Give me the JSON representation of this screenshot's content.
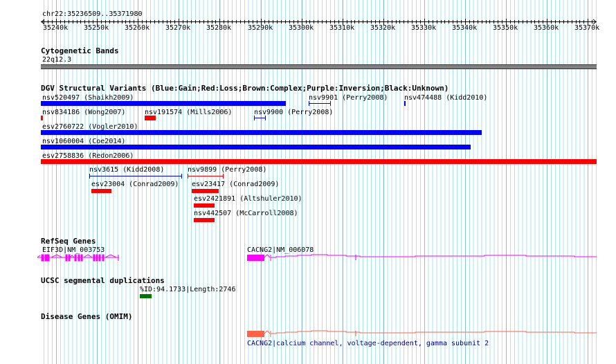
{
  "ruler": {
    "location": "chr22:35236509..35371980",
    "ticks": [
      "35240k",
      "35250k",
      "35260k",
      "35270k",
      "35280k",
      "35290k",
      "35300k",
      "35310k",
      "35320k",
      "35330k",
      "35340k",
      "35350k",
      "35360k",
      "35370k"
    ]
  },
  "tracks": {
    "cyto": {
      "title": "Cytogenetic Bands",
      "band": "22q12.3"
    },
    "dgv": {
      "title": "DGV Structural Variants (Blue:Gain;Red:Loss;Brown:Complex;Purple:Inversion;Black:Unknown)",
      "features": [
        {
          "label": "nsv520497 (Shaikh2009)",
          "type": "Gain"
        },
        {
          "label": "nsv9901 (Perry2008)",
          "type": "Gain"
        },
        {
          "label": "nsv474488 (Kidd2010)",
          "type": "Gain"
        },
        {
          "label": "nsv834186 (Wong2007)",
          "type": "Loss"
        },
        {
          "label": "nsv191574 (Mills2006)",
          "type": "Loss"
        },
        {
          "label": "nsv9900 (Perry2008)",
          "type": "Gain"
        },
        {
          "label": "esv2760722 (Vogler2010)",
          "type": "Gain"
        },
        {
          "label": "nsv1060004 (Coe2014)",
          "type": "Gain"
        },
        {
          "label": "esv2758836 (Redon2006)",
          "type": "Loss"
        },
        {
          "label": "nsv3615 (Kidd2008)",
          "type": "Gain"
        },
        {
          "label": "nsv9899 (Perry2008)",
          "type": "Loss"
        },
        {
          "label": "esv23004 (Conrad2009)",
          "type": "Loss"
        },
        {
          "label": "esv23417 (Conrad2009)",
          "type": "Loss"
        },
        {
          "label": "esv2421891 (Altshuler2010)",
          "type": "Loss"
        },
        {
          "label": "nsv442507 (McCarroll2008)",
          "type": "Loss"
        }
      ]
    },
    "refseq": {
      "title": "RefSeq Genes",
      "genes": [
        "EIF3D|NM_003753",
        "CACNG2|NM_006078"
      ]
    },
    "segdup": {
      "title": "UCSC segmental duplications",
      "feature": "%ID:94.1733|Length:2746"
    },
    "omim": {
      "title": "Disease Genes (OMIM)",
      "feature": "CACNG2|calcium channel, voltage-dependent, gamma subunit 2"
    }
  },
  "colors": {
    "gain": "#0000ff",
    "loss": "#ff0000",
    "gene": "#ff00ff",
    "segdup": "#007700",
    "omim": "#ff6347",
    "omim_label": "#000080",
    "cyto": "#808080",
    "grid_minor": "#a8e6ec",
    "grid_major": "#7ec0e8"
  }
}
